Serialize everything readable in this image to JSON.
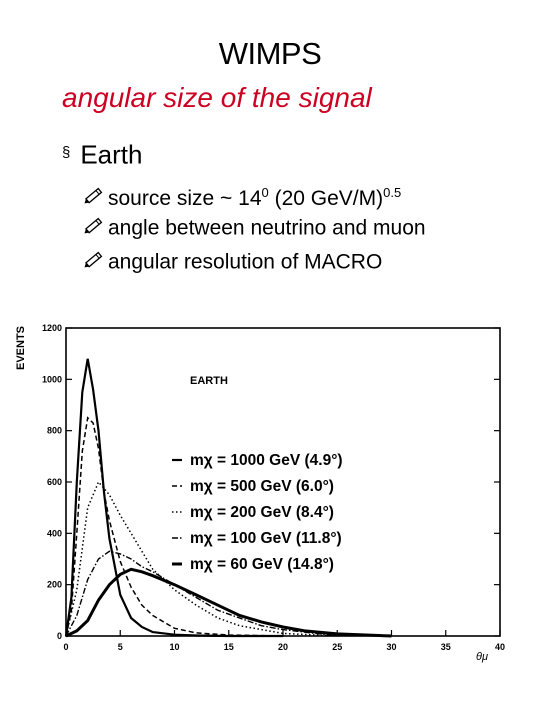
{
  "slide": {
    "title": "WIMPS",
    "subtitle": "angular size of the signal",
    "bullet": {
      "marker": "§",
      "label": "Earth"
    },
    "sub_items": [
      {
        "icon": "pencil-icon",
        "text_pre": "source size ~ 14",
        "sup1": "0",
        "text_mid": " (20 GeV/M)",
        "sup2": "0.5"
      },
      {
        "icon": "pencil-icon",
        "text": "angle between neutrino and muon"
      },
      {
        "icon": "pencil-icon",
        "text": "angular resolution of MACRO"
      }
    ]
  },
  "chart_data": {
    "type": "line",
    "title": "EARTH",
    "ylabel": "EVENTS",
    "xlabel": "θμ",
    "xlim": [
      0,
      40
    ],
    "ylim": [
      0,
      1200
    ],
    "xticks": [
      0,
      5,
      10,
      15,
      20,
      25,
      30,
      35,
      40
    ],
    "yticks": [
      0,
      200,
      400,
      600,
      800,
      1000,
      1200
    ],
    "legend_position": "center-right",
    "series": [
      {
        "name": "mχ = 1000 GeV (4.9°)",
        "style": "solid",
        "x": [
          0,
          0.5,
          1,
          1.5,
          2,
          2.5,
          3,
          3.5,
          4,
          5,
          6,
          7,
          8,
          10,
          12,
          15,
          20
        ],
        "values": [
          0,
          150,
          600,
          950,
          1080,
          960,
          800,
          560,
          380,
          160,
          70,
          35,
          15,
          5,
          2,
          0,
          0
        ]
      },
      {
        "name": "mχ = 500 GeV (6.0°)",
        "style": "dashed",
        "x": [
          0,
          0.5,
          1,
          1.5,
          2,
          2.5,
          3,
          3.5,
          4,
          5,
          6,
          7,
          8,
          10,
          12,
          15,
          20
        ],
        "values": [
          0,
          100,
          400,
          720,
          850,
          830,
          730,
          560,
          450,
          290,
          190,
          120,
          80,
          30,
          12,
          4,
          0
        ]
      },
      {
        "name": "mχ = 200 GeV (8.4°)",
        "style": "dotted",
        "x": [
          0,
          1,
          2,
          3,
          4,
          5,
          6,
          7,
          8,
          10,
          12,
          14,
          16,
          20,
          25
        ],
        "values": [
          0,
          180,
          500,
          600,
          550,
          470,
          400,
          330,
          260,
          180,
          120,
          70,
          40,
          10,
          0
        ]
      },
      {
        "name": "mχ = 100 GeV (11.8°)",
        "style": "dash-dot",
        "x": [
          0,
          1,
          2,
          3,
          4,
          5,
          6,
          7,
          8,
          10,
          12,
          14,
          16,
          18,
          20,
          25
        ],
        "values": [
          0,
          80,
          220,
          300,
          330,
          320,
          300,
          270,
          250,
          200,
          150,
          100,
          70,
          40,
          25,
          0
        ]
      },
      {
        "name": "mχ = 60 GeV (14.8°)",
        "style": "bold",
        "x": [
          0,
          1,
          2,
          3,
          4,
          5,
          6,
          7,
          8,
          10,
          12,
          14,
          16,
          18,
          20,
          22,
          25,
          30
        ],
        "values": [
          0,
          20,
          60,
          140,
          200,
          240,
          260,
          250,
          235,
          200,
          160,
          120,
          80,
          55,
          35,
          20,
          8,
          0
        ]
      }
    ]
  }
}
